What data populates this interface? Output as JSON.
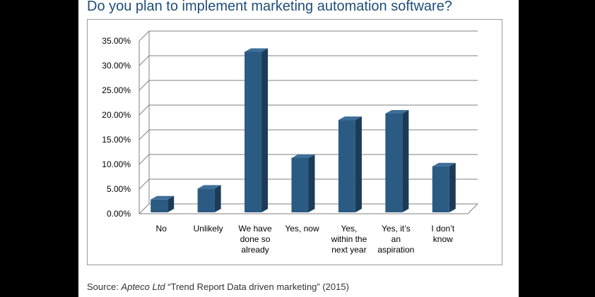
{
  "title": "Do you plan to implement marketing automation software?",
  "source": {
    "prefix": "Source: ",
    "organization": "Apteco Ltd",
    "report": " “Trend Report Data driven marketing” (2015)"
  },
  "colors": {
    "bar_front": "#2b5a82",
    "bar_side": "#1b3b58",
    "bar_top": "#3d6f9a",
    "grid": "#7f7f7f",
    "title": "#1f4e79"
  },
  "chart_data": {
    "type": "bar",
    "title": "",
    "xlabel": "",
    "ylabel": "",
    "ylim": [
      0,
      0.35
    ],
    "yticks": [
      0,
      0.05,
      0.1,
      0.15,
      0.2,
      0.25,
      0.3,
      0.35
    ],
    "ytick_labels": [
      "0.00%",
      "5.00%",
      "10.00%",
      "15.00%",
      "20.00%",
      "25.00%",
      "30.00%",
      "35.00%"
    ],
    "grid": true,
    "legend": "none",
    "categories": [
      [
        "No"
      ],
      [
        "Unlikely"
      ],
      [
        "We have",
        "done so",
        "already"
      ],
      [
        "Yes, now"
      ],
      [
        "Yes,",
        "within the",
        "next year"
      ],
      [
        "Yes, it’s",
        "an",
        "aspiration"
      ],
      [
        "I don’t",
        "know"
      ]
    ],
    "values": [
      0.026,
      0.048,
      0.325,
      0.11,
      0.187,
      0.2,
      0.093
    ]
  }
}
